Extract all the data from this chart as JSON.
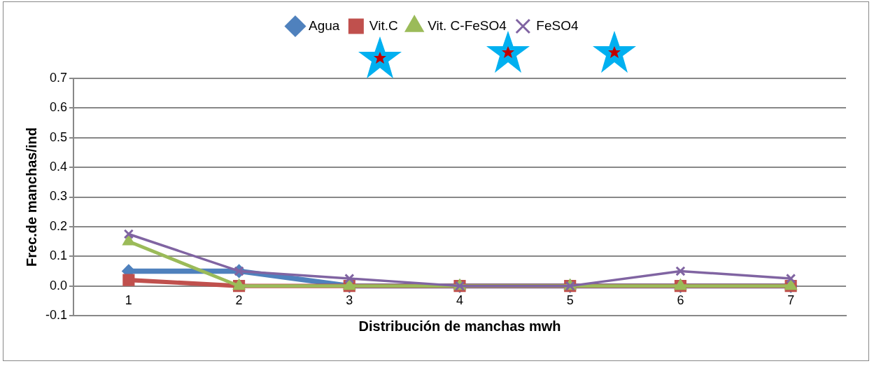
{
  "chart_data": {
    "type": "line",
    "xlabel": "Distribución de manchas mwh",
    "ylabel": "Frec.de manchas/ind",
    "categories": [
      "1",
      "2",
      "3",
      "4",
      "5",
      "6",
      "7"
    ],
    "series": [
      {
        "name": "Agua",
        "color": "#4f81bd",
        "marker": "diamond",
        "values": [
          0.05,
          0.05,
          0,
          0,
          0,
          0,
          0
        ]
      },
      {
        "name": "Vit.C",
        "color": "#c0504d",
        "marker": "square",
        "values": [
          0.02,
          0,
          0,
          0,
          0,
          0,
          0
        ]
      },
      {
        "name": "Vit. C-FeSO4",
        "color": "#9bbb59",
        "marker": "triangle",
        "values": [
          0.15,
          0,
          0,
          0,
          0,
          0,
          0
        ]
      },
      {
        "name": "FeSO4",
        "color": "#8064a2",
        "marker": "cross",
        "values": [
          0.175,
          0.05,
          0.025,
          0,
          0,
          0.05,
          0.025
        ]
      }
    ],
    "ylim": [
      -0.1,
      0.7
    ],
    "yticks": [
      {
        "value": -0.1,
        "label": "-0.1"
      },
      {
        "value": 0,
        "label": "0.0"
      },
      {
        "value": 0.1,
        "label": "0.1"
      },
      {
        "value": 0.2,
        "label": "0.2"
      },
      {
        "value": 0.3,
        "label": "0.3"
      },
      {
        "value": 0.4,
        "label": "0.4"
      },
      {
        "value": 0.5,
        "label": "0.5"
      },
      {
        "value": 0.6,
        "label": "0.6"
      },
      {
        "value": 0.7,
        "label": "0.7"
      }
    ],
    "grid": "y",
    "legend": "top",
    "line_style": "solid"
  }
}
